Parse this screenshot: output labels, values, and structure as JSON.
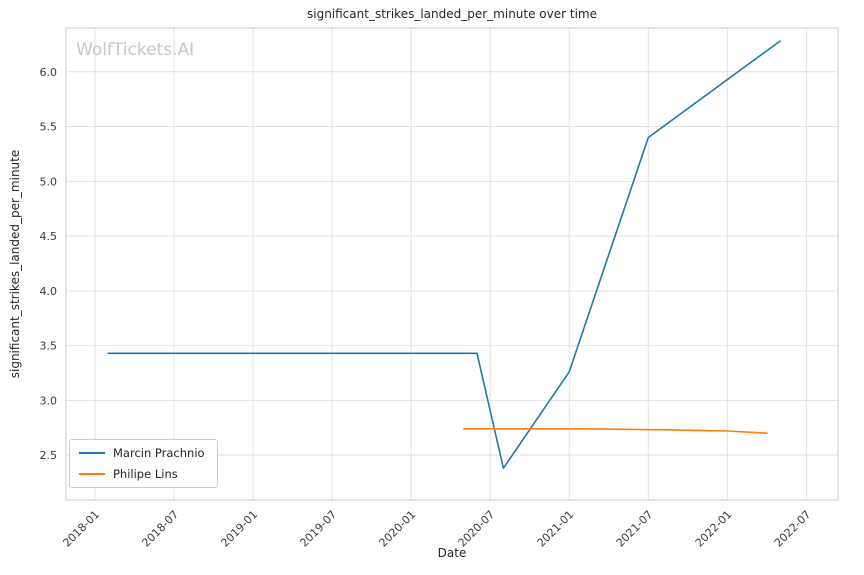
{
  "watermark": "WolfTickets.AI",
  "chart_data": {
    "type": "line",
    "title": "significant_strikes_landed_per_minute over time",
    "xlabel": "Date",
    "ylabel": "significant_strikes_landed_per_minute",
    "grid": true,
    "legend_position": "lower left",
    "background": "#ffffff",
    "grid_color": "#e2e2e2",
    "border_color": "#cccccc",
    "text_color": "#3b3b3b",
    "x_tick_labels": [
      "2018-01",
      "2018-07",
      "2019-01",
      "2019-07",
      "2020-01",
      "2020-07",
      "2021-01",
      "2021-07",
      "2022-01",
      "2022-07"
    ],
    "y_ticks": [
      2.5,
      3.0,
      3.5,
      4.0,
      4.5,
      5.0,
      5.5,
      6.0
    ],
    "x_range_months": [
      -2.2,
      56.4
    ],
    "y_range": [
      2.09,
      6.4
    ],
    "series": [
      {
        "name": "Marcin Prachnio",
        "color": "#1f77b4",
        "points": [
          {
            "date": "2018-02",
            "value": 3.43
          },
          {
            "date": "2020-06",
            "value": 3.43
          },
          {
            "date": "2020-08",
            "value": 2.38
          },
          {
            "date": "2021-01",
            "value": 3.26
          },
          {
            "date": "2021-07",
            "value": 5.4
          },
          {
            "date": "2022-05",
            "value": 6.28
          }
        ]
      },
      {
        "name": "Philipe Lins",
        "color": "#ff7f0e",
        "points": [
          {
            "date": "2020-05",
            "value": 2.74
          },
          {
            "date": "2021-02",
            "value": 2.74
          },
          {
            "date": "2021-09",
            "value": 2.73
          },
          {
            "date": "2022-01",
            "value": 2.72
          },
          {
            "date": "2022-04",
            "value": 2.7
          }
        ]
      }
    ]
  }
}
